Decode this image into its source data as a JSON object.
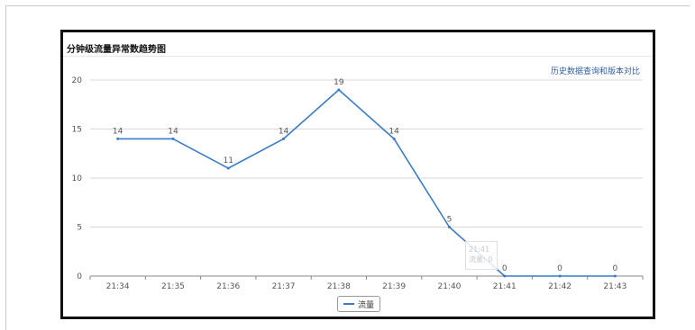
{
  "panel": {
    "title": "分钟级流量异常数趋势图",
    "history_link": "历史数据查询和版本对比"
  },
  "tooltip": {
    "time": "21:41",
    "series": "流量",
    "value": "0"
  },
  "colors": {
    "line": "#3a7cc6",
    "grid": "#d9d9d9",
    "axis_text": "#555555",
    "link": "#2f5f9f"
  },
  "chart_data": {
    "type": "line",
    "title": "分钟级流量异常数趋势图",
    "categories": [
      "21:34",
      "21:35",
      "21:36",
      "21:37",
      "21:38",
      "21:39",
      "21:40",
      "21:41",
      "21:42",
      "21:43"
    ],
    "series": [
      {
        "name": "流量",
        "values": [
          14,
          14,
          11,
          14,
          19,
          14,
          5,
          0,
          0,
          0
        ]
      }
    ],
    "yticks": [
      0,
      5,
      10,
      15,
      20
    ],
    "ylim": [
      0,
      20
    ],
    "grid": true,
    "legend": "bottom-center"
  }
}
